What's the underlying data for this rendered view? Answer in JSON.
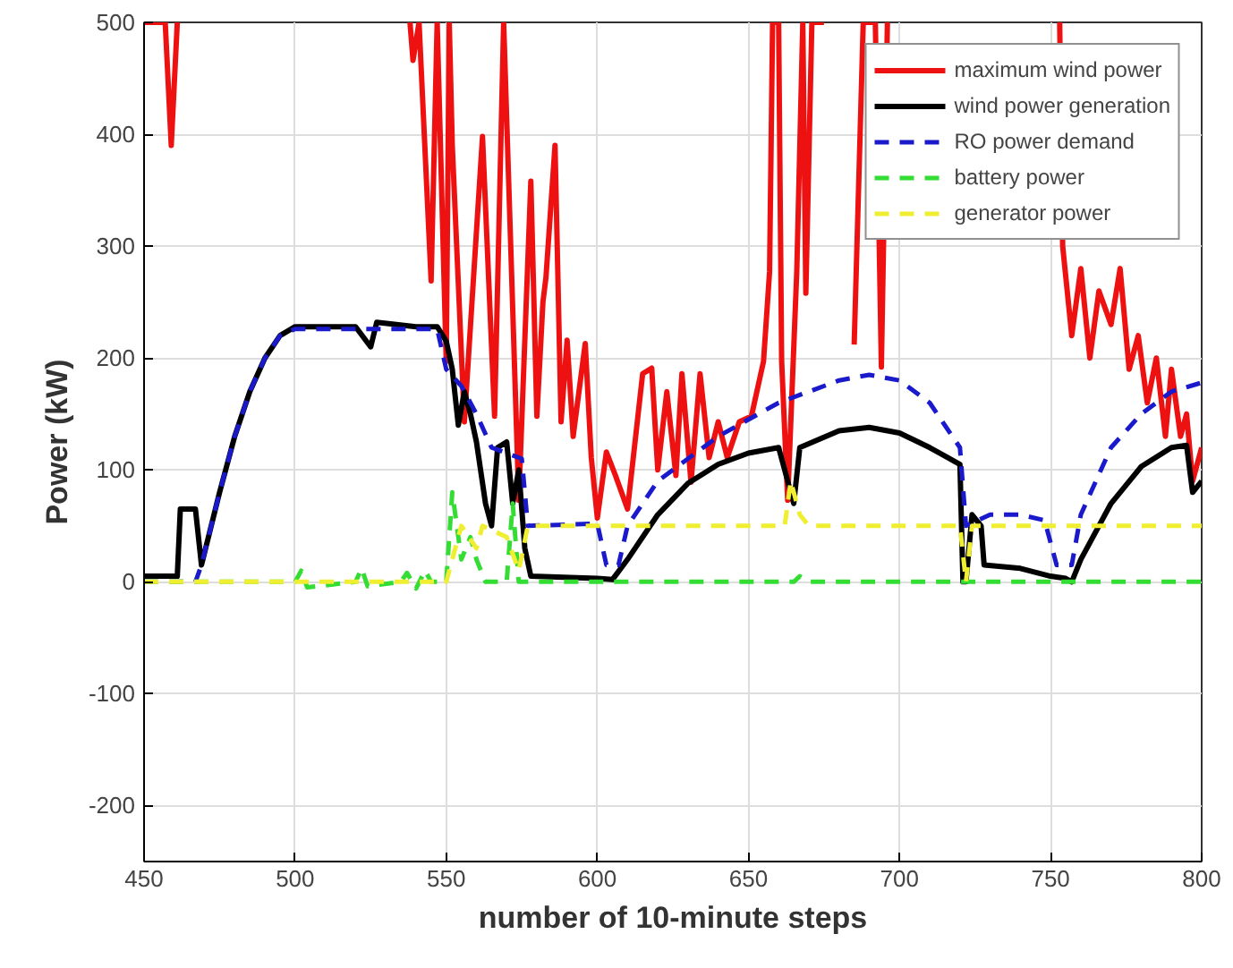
{
  "chart_data": {
    "type": "line",
    "xlabel": "number of 10-minute steps",
    "ylabel": "Power (kW)",
    "xlim": [
      450,
      800
    ],
    "ylim": [
      -250,
      500
    ],
    "xticks": [
      450,
      500,
      550,
      600,
      650,
      700,
      750,
      800
    ],
    "yticks": [
      -200,
      -100,
      0,
      100,
      200,
      300,
      400,
      500
    ],
    "grid": true,
    "legend": "top right",
    "marker": "none",
    "series": [
      {
        "name": "maximum wind power",
        "color": "#ee1111",
        "line_style": "solid",
        "x": [
          450,
          457,
          459,
          461,
          462,
          538,
          539,
          541,
          545,
          547,
          550,
          551,
          552,
          556,
          562,
          566,
          569,
          574,
          578,
          580,
          582,
          583,
          586,
          588,
          590,
          592,
          596,
          598,
          600,
          603,
          606,
          610,
          615,
          618,
          620,
          623,
          626,
          628,
          631,
          634,
          637,
          640,
          643,
          647,
          651,
          655,
          657,
          658,
          660,
          661,
          663,
          666,
          668,
          669,
          671,
          675,
          680,
          685,
          688,
          692,
          694,
          696,
          697,
          753,
          754,
          757,
          760,
          763,
          766,
          770,
          773,
          776,
          779,
          782,
          785,
          788,
          790,
          793,
          795,
          797,
          800
        ],
        "values": [
          500,
          500,
          390,
          500,
          null,
          500,
          466,
          500,
          269,
          500,
          197,
          500,
          390,
          143,
          398,
          148,
          500,
          73,
          358,
          148,
          250,
          272,
          390,
          143,
          216,
          130,
          213,
          111,
          57,
          116,
          95,
          65,
          186,
          191,
          100,
          170,
          95,
          186,
          89,
          186,
          111,
          143,
          111,
          143,
          148,
          197,
          277,
          500,
          500,
          197,
          73,
          277,
          500,
          258,
          500,
          500,
          null,
          212,
          500,
          500,
          192,
          500,
          null,
          500,
          300,
          220,
          280,
          200,
          260,
          230,
          280,
          190,
          220,
          160,
          200,
          130,
          190,
          130,
          150,
          90,
          120
        ]
      },
      {
        "name": "wind power generation",
        "color": "#000000",
        "line_style": "solid",
        "x": [
          450,
          461,
          462,
          467,
          469,
          475,
          480,
          485,
          490,
          495,
          500,
          520,
          525,
          527,
          540,
          547,
          550,
          552,
          554,
          556,
          558,
          560,
          563,
          565,
          567,
          570,
          572,
          574,
          576,
          578,
          600,
          605,
          610,
          620,
          630,
          640,
          650,
          660,
          663,
          665,
          667,
          680,
          690,
          700,
          710,
          720,
          721,
          722,
          724,
          727,
          728,
          740,
          750,
          755,
          757,
          760,
          770,
          780,
          790,
          795,
          797,
          800
        ],
        "values": [
          5,
          5,
          65,
          65,
          15,
          80,
          130,
          170,
          200,
          220,
          228,
          228,
          210,
          232,
          228,
          228,
          215,
          190,
          140,
          170,
          150,
          125,
          70,
          50,
          120,
          125,
          70,
          100,
          30,
          5,
          3,
          2,
          20,
          60,
          88,
          105,
          115,
          120,
          90,
          70,
          120,
          135,
          138,
          133,
          120,
          105,
          0,
          0,
          60,
          50,
          15,
          12,
          5,
          3,
          0,
          20,
          70,
          103,
          120,
          122,
          80,
          90
        ]
      },
      {
        "name": "RO power demand",
        "color": "#1a1acc",
        "line_style": "dashed",
        "x": [
          450,
          461,
          462,
          467,
          469,
          475,
          480,
          485,
          490,
          495,
          500,
          547,
          550,
          555,
          560,
          565,
          570,
          575,
          577,
          600,
          603,
          607,
          610,
          620,
          640,
          660,
          680,
          690,
          700,
          710,
          720,
          722,
          726,
          730,
          740,
          748,
          752,
          757,
          760,
          770,
          780,
          790,
          800
        ],
        "values": [
          0,
          0,
          0,
          0,
          15,
          80,
          130,
          170,
          200,
          220,
          226,
          226,
          190,
          175,
          150,
          120,
          115,
          110,
          50,
          52,
          15,
          15,
          50,
          90,
          130,
          160,
          180,
          185,
          180,
          160,
          120,
          50,
          55,
          60,
          60,
          55,
          15,
          15,
          60,
          120,
          150,
          170,
          178
        ]
      },
      {
        "name": "battery power",
        "color": "#33dd33",
        "line_style": "dashed",
        "x": [
          450,
          500,
          502,
          504,
          520,
          522,
          524,
          535,
          537,
          540,
          543,
          545,
          550,
          552,
          555,
          558,
          560,
          563,
          570,
          572,
          574,
          576,
          600,
          665,
          667,
          670,
          800
        ],
        "values": [
          0,
          0,
          10,
          -5,
          0,
          12,
          -4,
          0,
          8,
          -6,
          10,
          0,
          0,
          80,
          20,
          40,
          20,
          0,
          0,
          70,
          0,
          0,
          0,
          0,
          5,
          0,
          0
        ]
      },
      {
        "name": "generator power",
        "color": "#f0ee30",
        "line_style": "dashed",
        "x": [
          450,
          550,
          552,
          555,
          560,
          562,
          570,
          574,
          577,
          662,
          664,
          667,
          670,
          720,
          722,
          724,
          800
        ],
        "values": [
          0,
          0,
          20,
          50,
          30,
          50,
          40,
          10,
          50,
          50,
          90,
          60,
          50,
          50,
          0,
          50,
          50
        ]
      }
    ]
  }
}
